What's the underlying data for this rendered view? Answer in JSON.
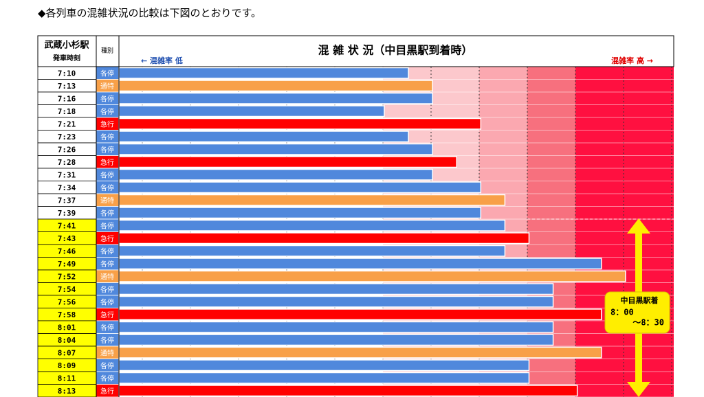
{
  "heading": "◆各列車の混雑状況の比較は下図のとおりです。",
  "chart_data": {
    "type": "hbar",
    "title": "混 雑 状 況（中目黒駅到着時）",
    "row_header": "武蔵小杉駅",
    "row_subheader": "発車時刻",
    "type_header": "種別",
    "low_label": "← 混雑率 低",
    "high_label": "混雑率 高 →",
    "annotation": {
      "title": "中目黒駅着",
      "line1": "8：00",
      "line2": "～8：30"
    },
    "categories": [
      "7:10",
      "7:13",
      "7:16",
      "7:18",
      "7:21",
      "7:23",
      "7:26",
      "7:28",
      "7:31",
      "7:34",
      "7:37",
      "7:39",
      "7:41",
      "7:43",
      "7:46",
      "7:49",
      "7:52",
      "7:54",
      "7:56",
      "7:58",
      "8:01",
      "8:04",
      "8:07",
      "8:09",
      "8:11",
      "8:13"
    ],
    "train_types": [
      "各停",
      "通特",
      "各停",
      "各停",
      "急行",
      "各停",
      "各停",
      "急行",
      "各停",
      "各停",
      "通特",
      "各停",
      "各停",
      "急行",
      "各停",
      "各停",
      "通特",
      "各停",
      "各停",
      "急行",
      "各停",
      "各停",
      "通特",
      "各停",
      "各停",
      "急行"
    ],
    "values": [
      6,
      6.5,
      6.5,
      5.5,
      7.5,
      6,
      6.5,
      7,
      6.5,
      7.5,
      8,
      7.5,
      8,
      8.5,
      8,
      10,
      10.5,
      9,
      9,
      10,
      9,
      9,
      10,
      8.5,
      8.5,
      9.5
    ],
    "colors": [
      "#5088dc",
      "#f8a048",
      "#5088dc",
      "#5088dc",
      "#ff0000",
      "#5088dc",
      "#5088dc",
      "#ff0000",
      "#5088dc",
      "#5088dc",
      "#f8a048",
      "#5088dc",
      "#5088dc",
      "#ff0000",
      "#5088dc",
      "#5088dc",
      "#f8a048",
      "#5088dc",
      "#5088dc",
      "#ff0000",
      "#5088dc",
      "#5088dc",
      "#f8a048",
      "#5088dc",
      "#5088dc",
      "#ff0000"
    ],
    "highlight": [
      false,
      false,
      false,
      false,
      false,
      false,
      false,
      false,
      false,
      false,
      false,
      false,
      true,
      true,
      true,
      true,
      true,
      true,
      true,
      true,
      true,
      true,
      true,
      true,
      true,
      true
    ],
    "highlight_color": "#ffff00",
    "xlim": [
      0,
      11.5
    ]
  }
}
